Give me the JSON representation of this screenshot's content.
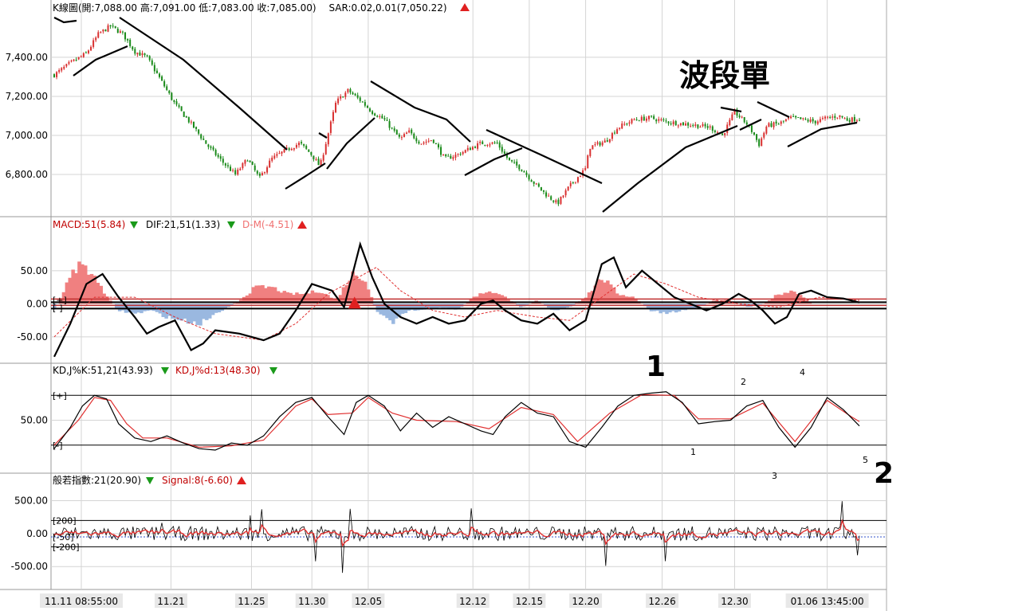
{
  "colors": {
    "up": "#d93030",
    "down": "#1a8a1a",
    "macd_pos": "#f08080",
    "macd_neg": "#9ab8e0",
    "grid": "#d4d4d4",
    "line": "#000000",
    "signal": "#e03030",
    "blue": "#3050c8"
  },
  "headers": {
    "kline": {
      "title": "K線圖(開:7,088.00 高:7,091.00 低:7,083.00 收:7,085.00)",
      "sar": "SAR:0.02,0.01(7,050.22)",
      "sar_dir": "up"
    },
    "macd": {
      "macd": "MACD:51(5.84)",
      "macd_dir": "down",
      "dif": "DIF:21,51(1.33)",
      "dif_dir": "down",
      "dm": "D-M(-4.51)",
      "dm_dir": "up"
    },
    "kd": {
      "k": "KD,J%K:51,21(43.93)",
      "k_dir": "down",
      "d": "KD,J%d:13(48.30)",
      "d_dir": "down"
    },
    "cci": {
      "cci": "般若指數:21(20.90)",
      "cci_dir": "down",
      "signal": "Signal:8(-6.60)",
      "signal_dir": "up"
    }
  },
  "annotations": {
    "wave_title": "波段單",
    "big1": "1",
    "big2": "2",
    "kd_marks": [
      "1",
      "2",
      "3",
      "4",
      "5"
    ]
  },
  "chart_data": [
    {
      "type": "candlestick",
      "name": "K線圖",
      "x_labels": [
        "11.11 08:55:00",
        "11.21",
        "11.25",
        "11.30",
        "12.05",
        "12.12",
        "12.15",
        "12.20",
        "12.26",
        "12.30",
        "01.06 13:45:00"
      ],
      "y_ticks": [
        "7,400.00",
        "7,200.00",
        "7,000.00",
        "6,800.00"
      ],
      "ylim": [
        6600,
        7620
      ],
      "close_path": [
        [
          0,
          7310
        ],
        [
          0.02,
          7370
        ],
        [
          0.04,
          7420
        ],
        [
          0.055,
          7520
        ],
        [
          0.07,
          7560
        ],
        [
          0.085,
          7520
        ],
        [
          0.1,
          7430
        ],
        [
          0.115,
          7400
        ],
        [
          0.13,
          7300
        ],
        [
          0.15,
          7160
        ],
        [
          0.17,
          7060
        ],
        [
          0.19,
          6950
        ],
        [
          0.21,
          6860
        ],
        [
          0.225,
          6800
        ],
        [
          0.24,
          6880
        ],
        [
          0.255,
          6780
        ],
        [
          0.27,
          6880
        ],
        [
          0.29,
          6930
        ],
        [
          0.305,
          6960
        ],
        [
          0.32,
          6900
        ],
        [
          0.33,
          6840
        ],
        [
          0.35,
          7170
        ],
        [
          0.365,
          7230
        ],
        [
          0.38,
          7180
        ],
        [
          0.395,
          7120
        ],
        [
          0.41,
          7080
        ],
        [
          0.43,
          6980
        ],
        [
          0.44,
          7020
        ],
        [
          0.455,
          6960
        ],
        [
          0.47,
          6980
        ],
        [
          0.485,
          6880
        ],
        [
          0.5,
          6900
        ],
        [
          0.515,
          6930
        ],
        [
          0.53,
          6960
        ],
        [
          0.55,
          6960
        ],
        [
          0.565,
          6870
        ],
        [
          0.58,
          6830
        ],
        [
          0.595,
          6760
        ],
        [
          0.61,
          6700
        ],
        [
          0.625,
          6650
        ],
        [
          0.64,
          6740
        ],
        [
          0.66,
          6830
        ],
        [
          0.665,
          6940
        ],
        [
          0.685,
          6970
        ],
        [
          0.7,
          7040
        ],
        [
          0.72,
          7080
        ],
        [
          0.74,
          7090
        ],
        [
          0.76,
          7070
        ],
        [
          0.78,
          7060
        ],
        [
          0.8,
          7050
        ],
        [
          0.815,
          7040
        ],
        [
          0.83,
          7000
        ],
        [
          0.845,
          7120
        ],
        [
          0.86,
          7060
        ],
        [
          0.87,
          7000
        ],
        [
          0.875,
          6950
        ],
        [
          0.885,
          7050
        ],
        [
          0.9,
          7060
        ],
        [
          0.915,
          7090
        ],
        [
          0.93,
          7080
        ],
        [
          0.945,
          7070
        ],
        [
          0.96,
          7090
        ],
        [
          0.975,
          7100
        ],
        [
          0.985,
          7080
        ],
        [
          1,
          7085
        ]
      ]
    },
    {
      "type": "line",
      "name": "MACD",
      "y_ticks": [
        "50.00",
        "0.00",
        "-50.00"
      ],
      "ylim": [
        -85,
        110
      ],
      "dif_path": [
        [
          0,
          -80
        ],
        [
          0.02,
          -30
        ],
        [
          0.04,
          30
        ],
        [
          0.06,
          45
        ],
        [
          0.08,
          10
        ],
        [
          0.1,
          -20
        ],
        [
          0.115,
          -45
        ],
        [
          0.13,
          -35
        ],
        [
          0.15,
          -25
        ],
        [
          0.17,
          -70
        ],
        [
          0.185,
          -60
        ],
        [
          0.2,
          -40
        ],
        [
          0.23,
          -45
        ],
        [
          0.26,
          -55
        ],
        [
          0.28,
          -45
        ],
        [
          0.3,
          -10
        ],
        [
          0.32,
          30
        ],
        [
          0.345,
          20
        ],
        [
          0.36,
          -5
        ],
        [
          0.38,
          90
        ],
        [
          0.395,
          40
        ],
        [
          0.41,
          0
        ],
        [
          0.43,
          -20
        ],
        [
          0.45,
          -30
        ],
        [
          0.47,
          -20
        ],
        [
          0.49,
          -30
        ],
        [
          0.51,
          -25
        ],
        [
          0.53,
          0
        ],
        [
          0.545,
          5
        ],
        [
          0.56,
          -10
        ],
        [
          0.58,
          -25
        ],
        [
          0.6,
          -30
        ],
        [
          0.62,
          -15
        ],
        [
          0.64,
          -40
        ],
        [
          0.66,
          -25
        ],
        [
          0.68,
          60
        ],
        [
          0.695,
          70
        ],
        [
          0.71,
          25
        ],
        [
          0.73,
          50
        ],
        [
          0.75,
          30
        ],
        [
          0.77,
          10
        ],
        [
          0.79,
          0
        ],
        [
          0.81,
          -10
        ],
        [
          0.83,
          0
        ],
        [
          0.85,
          15
        ],
        [
          0.865,
          5
        ],
        [
          0.88,
          -10
        ],
        [
          0.895,
          -30
        ],
        [
          0.91,
          -20
        ],
        [
          0.925,
          15
        ],
        [
          0.94,
          20
        ],
        [
          0.96,
          10
        ],
        [
          0.98,
          8
        ],
        [
          1,
          2
        ]
      ],
      "signal_path": [
        [
          0,
          -50
        ],
        [
          0.05,
          10
        ],
        [
          0.1,
          10
        ],
        [
          0.15,
          -20
        ],
        [
          0.2,
          -45
        ],
        [
          0.26,
          -55
        ],
        [
          0.3,
          -30
        ],
        [
          0.34,
          15
        ],
        [
          0.37,
          35
        ],
        [
          0.4,
          55
        ],
        [
          0.43,
          20
        ],
        [
          0.47,
          -10
        ],
        [
          0.51,
          -20
        ],
        [
          0.55,
          -10
        ],
        [
          0.6,
          -20
        ],
        [
          0.64,
          -25
        ],
        [
          0.68,
          10
        ],
        [
          0.72,
          45
        ],
        [
          0.76,
          30
        ],
        [
          0.8,
          10
        ],
        [
          0.85,
          0
        ],
        [
          0.9,
          -5
        ],
        [
          0.95,
          10
        ],
        [
          1,
          5
        ]
      ],
      "hist_path": [
        [
          0,
          -10
        ],
        [
          0.02,
          40
        ],
        [
          0.03,
          60
        ],
        [
          0.045,
          50
        ],
        [
          0.06,
          20
        ],
        [
          0.08,
          -10
        ],
        [
          0.1,
          -15
        ],
        [
          0.12,
          -10
        ],
        [
          0.14,
          -20
        ],
        [
          0.16,
          -25
        ],
        [
          0.18,
          -30
        ],
        [
          0.2,
          -15
        ],
        [
          0.23,
          5
        ],
        [
          0.25,
          25
        ],
        [
          0.27,
          25
        ],
        [
          0.29,
          15
        ],
        [
          0.31,
          15
        ],
        [
          0.33,
          20
        ],
        [
          0.35,
          5
        ],
        [
          0.37,
          45
        ],
        [
          0.385,
          40
        ],
        [
          0.4,
          -10
        ],
        [
          0.42,
          -30
        ],
        [
          0.44,
          -10
        ],
        [
          0.46,
          -10
        ],
        [
          0.48,
          -5
        ],
        [
          0.5,
          -10
        ],
        [
          0.52,
          10
        ],
        [
          0.54,
          20
        ],
        [
          0.56,
          10
        ],
        [
          0.58,
          -5
        ],
        [
          0.6,
          5
        ],
        [
          0.62,
          -10
        ],
        [
          0.64,
          -5
        ],
        [
          0.66,
          10
        ],
        [
          0.68,
          40
        ],
        [
          0.7,
          15
        ],
        [
          0.72,
          10
        ],
        [
          0.74,
          -10
        ],
        [
          0.76,
          -15
        ],
        [
          0.78,
          -10
        ],
        [
          0.8,
          -5
        ],
        [
          0.82,
          5
        ],
        [
          0.84,
          5
        ],
        [
          0.86,
          -5
        ],
        [
          0.88,
          0
        ],
        [
          0.9,
          15
        ],
        [
          0.92,
          20
        ],
        [
          0.94,
          0
        ],
        [
          0.96,
          0
        ],
        [
          1,
          0
        ]
      ],
      "zero_labels": [
        "[+]",
        "[-]"
      ]
    },
    {
      "type": "line",
      "name": "KD",
      "y_ticks": [
        "50.00"
      ],
      "ylim": [
        -20,
        110
      ],
      "band_labels": [
        "[+]",
        "[-]"
      ],
      "band_levels": [
        85,
        15
      ],
      "k_path": [
        [
          0,
          10
        ],
        [
          0.02,
          40
        ],
        [
          0.035,
          70
        ],
        [
          0.05,
          85
        ],
        [
          0.065,
          80
        ],
        [
          0.08,
          45
        ],
        [
          0.1,
          25
        ],
        [
          0.12,
          20
        ],
        [
          0.14,
          28
        ],
        [
          0.16,
          18
        ],
        [
          0.18,
          10
        ],
        [
          0.2,
          8
        ],
        [
          0.22,
          18
        ],
        [
          0.24,
          15
        ],
        [
          0.26,
          28
        ],
        [
          0.28,
          55
        ],
        [
          0.3,
          75
        ],
        [
          0.32,
          82
        ],
        [
          0.34,
          55
        ],
        [
          0.36,
          30
        ],
        [
          0.375,
          75
        ],
        [
          0.39,
          85
        ],
        [
          0.41,
          70
        ],
        [
          0.43,
          35
        ],
        [
          0.45,
          60
        ],
        [
          0.47,
          40
        ],
        [
          0.49,
          55
        ],
        [
          0.51,
          45
        ],
        [
          0.53,
          35
        ],
        [
          0.545,
          30
        ],
        [
          0.56,
          55
        ],
        [
          0.58,
          75
        ],
        [
          0.6,
          60
        ],
        [
          0.62,
          55
        ],
        [
          0.64,
          20
        ],
        [
          0.66,
          12
        ],
        [
          0.68,
          40
        ],
        [
          0.7,
          70
        ],
        [
          0.72,
          85
        ],
        [
          0.74,
          88
        ],
        [
          0.76,
          90
        ],
        [
          0.78,
          75
        ],
        [
          0.8,
          45
        ],
        [
          0.82,
          48
        ],
        [
          0.84,
          50
        ],
        [
          0.86,
          70
        ],
        [
          0.88,
          78
        ],
        [
          0.9,
          40
        ],
        [
          0.92,
          12
        ],
        [
          0.94,
          40
        ],
        [
          0.96,
          82
        ],
        [
          0.98,
          65
        ],
        [
          1,
          42
        ]
      ],
      "d_path": [
        [
          0,
          15
        ],
        [
          0.03,
          50
        ],
        [
          0.05,
          82
        ],
        [
          0.07,
          78
        ],
        [
          0.09,
          45
        ],
        [
          0.11,
          25
        ],
        [
          0.14,
          25
        ],
        [
          0.18,
          12
        ],
        [
          0.22,
          14
        ],
        [
          0.26,
          22
        ],
        [
          0.3,
          70
        ],
        [
          0.32,
          80
        ],
        [
          0.34,
          58
        ],
        [
          0.37,
          60
        ],
        [
          0.39,
          82
        ],
        [
          0.42,
          60
        ],
        [
          0.45,
          50
        ],
        [
          0.5,
          48
        ],
        [
          0.54,
          38
        ],
        [
          0.58,
          68
        ],
        [
          0.62,
          58
        ],
        [
          0.65,
          20
        ],
        [
          0.69,
          60
        ],
        [
          0.73,
          86
        ],
        [
          0.77,
          85
        ],
        [
          0.8,
          52
        ],
        [
          0.84,
          52
        ],
        [
          0.88,
          74
        ],
        [
          0.92,
          20
        ],
        [
          0.96,
          78
        ],
        [
          0.99,
          55
        ],
        [
          1,
          48
        ]
      ]
    },
    {
      "type": "line",
      "name": "般若指數",
      "y_ticks": [
        "500.00",
        "0.00",
        "-500.00"
      ],
      "ylim": [
        -800,
        700
      ],
      "band_labels": [
        "[200]",
        "[-50]",
        "[-200]"
      ],
      "band_levels": [
        200,
        -50,
        -200
      ]
    }
  ]
}
